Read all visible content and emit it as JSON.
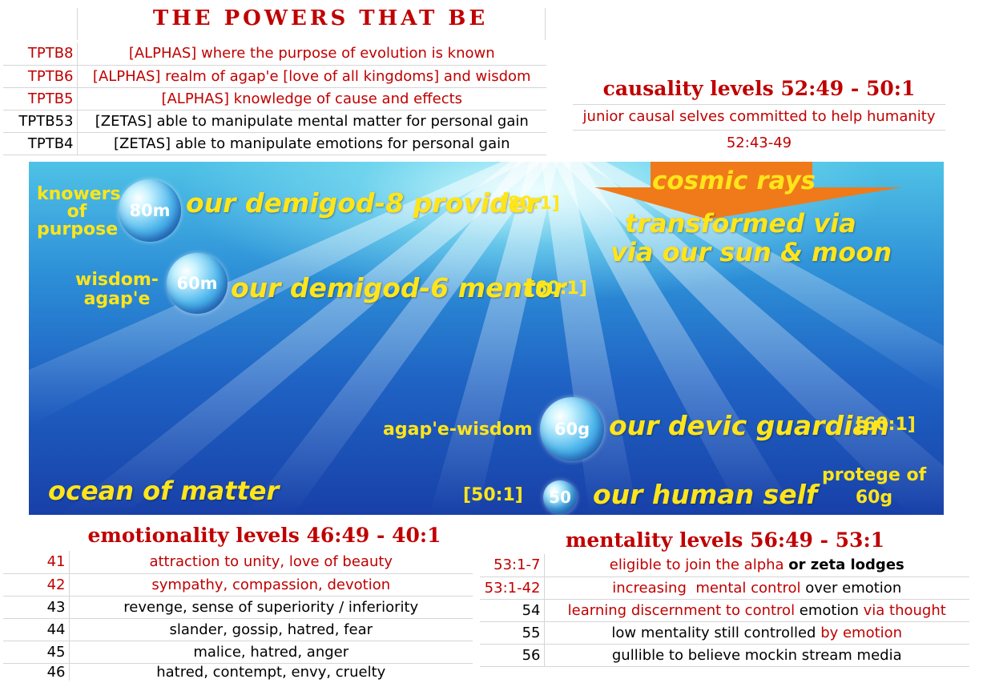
{
  "powers_that_be": {
    "title": "THE POWERS THAT BE",
    "rows": [
      {
        "code": "TPTB8",
        "text": "[ALPHAS] where the purpose of evolution is known",
        "color": "#c00000"
      },
      {
        "code": "TPTB6",
        "text": "[ALPHAS] realm of agap'e [love of all kingdoms]  and wisdom",
        "color": "#c00000"
      },
      {
        "code": "TPTB5",
        "text": "[ALPHAS] knowledge of cause and effects",
        "color": "#c00000"
      },
      {
        "code": "TPTB53",
        "text": "[ZETAS] able to manipulate mental matter for personal gain",
        "color": "#000000"
      },
      {
        "code": "TPTB4",
        "text": "[ZETAS] able to manipulate emotions for personal gain",
        "color": "#000000"
      }
    ]
  },
  "causality": {
    "title": "causality levels 52:49 - 50:1",
    "description": "junior causal selves committed to help humanity",
    "range": "52:43-49"
  },
  "ocean": {
    "cosmic_rays": "cosmic rays",
    "transformed_line1": "transformed via",
    "transformed_line2": "via our sun & moon",
    "ocean_label": "ocean of matter",
    "demigod8": {
      "side_line1": "knowers",
      "side_line2": "of",
      "side_line3": "purpose",
      "bubble": "80m",
      "name": "our demigod-8 provider",
      "level": "[80:1]"
    },
    "demigod6": {
      "side_line1": "wisdom-",
      "side_line2": "agap'e",
      "bubble": "60m",
      "name": "our demigod-6 mentor",
      "level": "[60:1]"
    },
    "devic": {
      "side": "agap'e-wisdom",
      "bubble": "60g",
      "name": "our devic guardian",
      "level": "[60:1]"
    },
    "human": {
      "level": "[50:1]",
      "bubble": "50",
      "name": "our  human self",
      "protege_line1": "protege of",
      "protege_line2": "60g"
    }
  },
  "emotionality": {
    "title": "emotionality levels 46:49 -  40:1",
    "rows": [
      {
        "level": "41",
        "text": "attraction to unity, love of beauty",
        "color": "#c00000"
      },
      {
        "level": "42",
        "text": "sympathy, compassion, devotion",
        "color": "#c00000"
      },
      {
        "level": "43",
        "text": "revenge, sense of superiority / inferiority",
        "color": "#000000"
      },
      {
        "level": "44",
        "text": "slander, gossip, hatred, fear",
        "color": "#000000"
      },
      {
        "level": "45",
        "text": "malice, hatred, anger",
        "color": "#000000"
      },
      {
        "level": "46",
        "text": "hatred, contempt, envy, cruelty",
        "color": "#000000"
      }
    ]
  },
  "mentality": {
    "title": "mentality levels 56:49  -  53:1",
    "rows": [
      {
        "level": "53:1-7",
        "level_color": "#c00000",
        "parts": [
          {
            "t": "eligible to join the alpha ",
            "c": "#c00000",
            "b": false
          },
          {
            "t": "or zeta lodges",
            "c": "#000000",
            "b": true
          }
        ]
      },
      {
        "level": "53:1-42",
        "level_color": "#c00000",
        "parts": [
          {
            "t": "increasing  mental control ",
            "c": "#c00000",
            "b": false
          },
          {
            "t": "over emotion",
            "c": "#000000",
            "b": false
          }
        ]
      },
      {
        "level": "54",
        "level_color": "#000000",
        "parts": [
          {
            "t": "learning discernment to control ",
            "c": "#c00000",
            "b": false
          },
          {
            "t": "emotion ",
            "c": "#000000",
            "b": false
          },
          {
            "t": "via thought",
            "c": "#c00000",
            "b": false
          }
        ]
      },
      {
        "level": "55",
        "level_color": "#000000",
        "parts": [
          {
            "t": "low mentality still controlled ",
            "c": "#000000",
            "b": false
          },
          {
            "t": "by emotion",
            "c": "#c00000",
            "b": false
          }
        ]
      },
      {
        "level": "56",
        "level_color": "#000000",
        "parts": [
          {
            "t": "gullible to believe mockin stream media",
            "c": "#000000",
            "b": false
          }
        ]
      }
    ]
  },
  "colors": {
    "accent_red": "#c00000",
    "label_yellow": "#ffe51a",
    "arrow_orange": "#f07a1a"
  }
}
